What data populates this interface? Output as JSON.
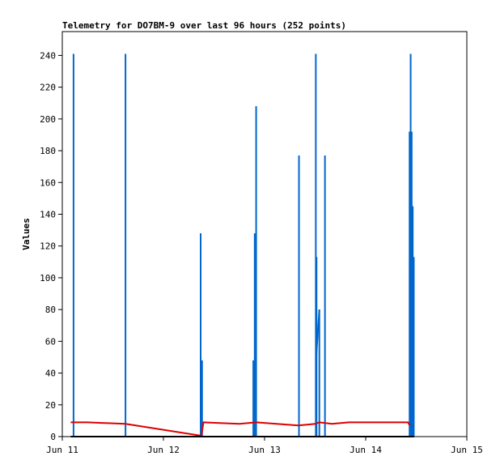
{
  "chart_data": {
    "type": "line",
    "title": "Telemetry for DO7BM-9 over last 96 hours (252 points)",
    "xlabel": "",
    "ylabel": "Values",
    "x_axis": {
      "type": "date",
      "min": "Jun 11",
      "max": "Jun 15",
      "ticks": [
        "Jun 11",
        "Jun 12",
        "Jun 13",
        "Jun 14",
        "Jun 15"
      ]
    },
    "y_axis": {
      "min": 0,
      "max": 255,
      "ticks": [
        0,
        20,
        40,
        60,
        80,
        100,
        120,
        140,
        160,
        180,
        200,
        220,
        240
      ]
    },
    "grid": false,
    "legend": "none",
    "series": [
      {
        "color": "#0066cc",
        "style": "spikes",
        "points": [
          [
            "Jun 11 02:40",
            241
          ],
          [
            "Jun 11 15:00",
            241
          ],
          [
            "Jun 12 08:50",
            128
          ],
          [
            "Jun 12 09:10",
            48
          ],
          [
            "Jun 12 21:20",
            48
          ],
          [
            "Jun 12 21:40",
            128
          ],
          [
            "Jun 12 22:00",
            208
          ],
          [
            "Jun 13 08:10",
            177
          ],
          [
            "Jun 13 12:05",
            0
          ],
          [
            "Jun 13 12:10",
            241
          ],
          [
            "Jun 13 12:20",
            113
          ],
          [
            "Jun 13 13:00",
            80
          ],
          [
            "Jun 13 14:20",
            177
          ],
          [
            "Jun 14 10:25",
            192
          ],
          [
            "Jun 14 10:40",
            241
          ],
          [
            "Jun 14 10:55",
            192
          ],
          [
            "Jun 14 11:10",
            145
          ],
          [
            "Jun 14 11:25",
            113
          ]
        ],
        "ramps": [
          {
            "from": [
              "Jun 13 12:15",
              50
            ],
            "to": [
              "Jun 13 13:00",
              80
            ]
          }
        ]
      },
      {
        "color": "#dd0000",
        "style": "line",
        "points": [
          [
            "Jun 11 02:00",
            9
          ],
          [
            "Jun 11 06:00",
            9
          ],
          [
            "Jun 11 15:00",
            8
          ],
          [
            "Jun 12 09:00",
            0.5
          ],
          [
            "Jun 12 09:30",
            9
          ],
          [
            "Jun 12 18:00",
            8
          ],
          [
            "Jun 12 22:00",
            9
          ],
          [
            "Jun 13 08:00",
            7
          ],
          [
            "Jun 13 12:00",
            8
          ],
          [
            "Jun 13 13:00",
            9
          ],
          [
            "Jun 13 16:00",
            8
          ],
          [
            "Jun 13 20:00",
            9
          ],
          [
            "Jun 14 08:00",
            9
          ],
          [
            "Jun 14 10:00",
            9
          ],
          [
            "Jun 14 10:30",
            7
          ]
        ]
      },
      {
        "color": "#000000",
        "style": "line",
        "points": [
          [
            "Jun 11 02:00",
            0
          ],
          [
            "Jun 14 11:30",
            0
          ]
        ]
      }
    ]
  }
}
